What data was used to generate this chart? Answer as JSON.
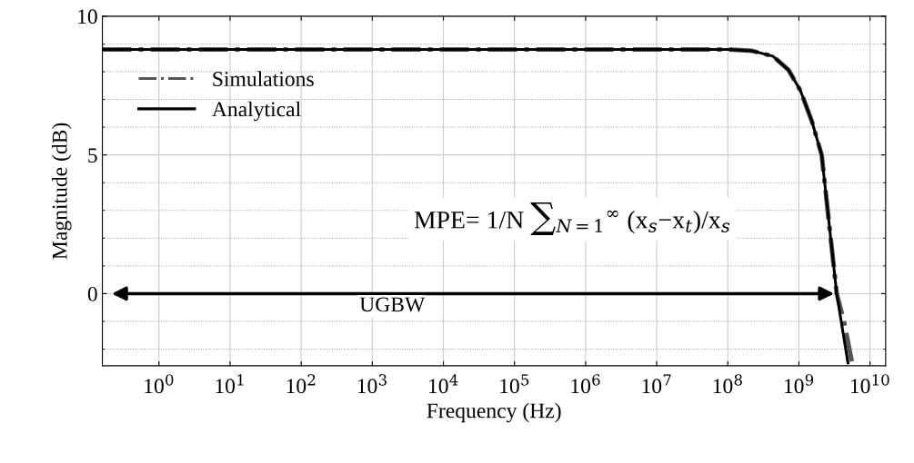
{
  "chart_data": {
    "type": "line",
    "xlabel": "Frequency (Hz)",
    "ylabel": "Magnitude (dB)",
    "log": "x",
    "grid": true,
    "legend": "top left",
    "marker": "none",
    "xlim": [
      0.16,
      16600000000
    ],
    "ylim": [
      -2.6,
      10
    ],
    "xticks": [
      {
        "value": 1,
        "label": "10$^{0}$"
      },
      {
        "value": 10,
        "label": "10$^{1}$"
      },
      {
        "value": 100,
        "label": "10$^{2}$"
      },
      {
        "value": 1000,
        "label": "10$^{3}$"
      },
      {
        "value": 10000,
        "label": "10$^{4}$"
      },
      {
        "value": 100000,
        "label": "10$^{5}$"
      },
      {
        "value": 1000000,
        "label": "10$^{6}$"
      },
      {
        "value": 10000000,
        "label": "10$^{7}$"
      },
      {
        "value": 100000000,
        "label": "10$^{8}$"
      },
      {
        "value": 1000000000,
        "label": "10$^{9}$"
      },
      {
        "value": 10000000000,
        "label": "10$^{10}$"
      }
    ],
    "yticks": [
      0,
      5,
      10
    ],
    "series": [
      {
        "name": "Simulations",
        "color": "#555555",
        "line_style": "dashdot",
        "x": [
          0.16,
          100000000,
          220000000,
          430000000,
          710000000,
          1050000000,
          1510000000,
          2090000000,
          3400000000,
          4300000000,
          5600000000
        ],
        "values": [
          8.8,
          8.8,
          8.75,
          8.56,
          8.07,
          7.32,
          6.24,
          5.0,
          0.0,
          -1.0,
          -2.5
        ]
      },
      {
        "name": "Analytical",
        "color": "#000000",
        "line_style": "solid",
        "x": [
          0.16,
          100000000,
          220000000,
          430000000,
          710000000,
          1050000000,
          1510000000,
          2090000000,
          3400000000,
          4900000000
        ],
        "values": [
          8.8,
          8.8,
          8.75,
          8.56,
          8.07,
          7.32,
          6.24,
          5.0,
          0.0,
          -2.5
        ]
      }
    ],
    "annotations": [
      "MPE= 1/N ∑$_{N=1}$$^{∞}$ (x$_{s}$−x$_{t}$)/x$_{s}$",
      "UGBW"
    ]
  }
}
